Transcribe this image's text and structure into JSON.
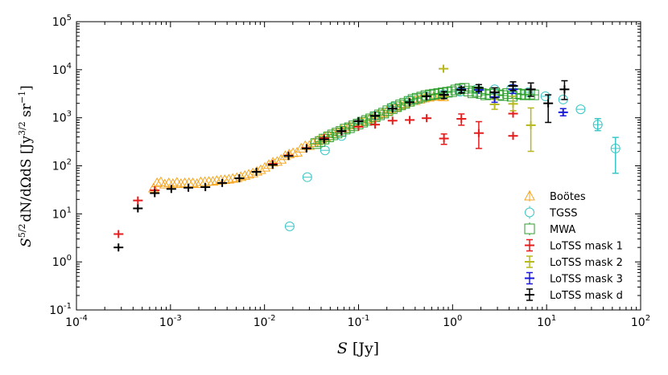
{
  "chart_data": {
    "type": "scatter",
    "xscale": "log",
    "yscale": "log",
    "xlim": [
      0.0001,
      100
    ],
    "ylim": [
      0.1,
      100000
    ],
    "xlabel": "S [Jy]",
    "ylabel": "S^(5/2) dN/dΩdS [Jy^(3/2) sr^-1]",
    "xlabel_parts": {
      "var": "S",
      "unit": "[Jy]"
    },
    "ylabel_parts": {
      "main": "S",
      "exp1": "5/2",
      "mid": "dN/dΩdS [Jy",
      "exp2": "3/2",
      "tail": " sr",
      "exp3": "−1",
      "close": "]"
    },
    "x_ticks": [
      {
        "value": 0.0001,
        "base": "10",
        "exp": "-4"
      },
      {
        "value": 0.001,
        "base": "10",
        "exp": "-3"
      },
      {
        "value": 0.01,
        "base": "10",
        "exp": "-2"
      },
      {
        "value": 0.1,
        "base": "10",
        "exp": "-1"
      },
      {
        "value": 1,
        "base": "10",
        "exp": "0"
      },
      {
        "value": 10,
        "base": "10",
        "exp": "1"
      },
      {
        "value": 100,
        "base": "10",
        "exp": "2"
      }
    ],
    "y_ticks": [
      {
        "value": 0.1,
        "base": "10",
        "exp": "-1"
      },
      {
        "value": 1,
        "base": "10",
        "exp": "0"
      },
      {
        "value": 10,
        "base": "10",
        "exp": "1"
      },
      {
        "value": 100,
        "base": "10",
        "exp": "2"
      },
      {
        "value": 1000,
        "base": "10",
        "exp": "3"
      },
      {
        "value": 10000,
        "base": "10",
        "exp": "4"
      },
      {
        "value": 100000,
        "base": "10",
        "exp": "5"
      }
    ],
    "legend_position": "lower-right",
    "series": [
      {
        "name": "Boötes",
        "key": "bootes",
        "marker": "triangle",
        "color": "#f5a623",
        "points": [
          {
            "x": 0.00066,
            "y": 34
          },
          {
            "x": 0.00072,
            "y": 44
          },
          {
            "x": 0.00079,
            "y": 46
          },
          {
            "x": 0.00087,
            "y": 41
          },
          {
            "x": 0.00096,
            "y": 44
          },
          {
            "x": 0.00106,
            "y": 42
          },
          {
            "x": 0.00117,
            "y": 45
          },
          {
            "x": 0.00129,
            "y": 42
          },
          {
            "x": 0.00142,
            "y": 44
          },
          {
            "x": 0.00157,
            "y": 44
          },
          {
            "x": 0.00173,
            "y": 44
          },
          {
            "x": 0.00191,
            "y": 42
          },
          {
            "x": 0.0021,
            "y": 46
          },
          {
            "x": 0.00232,
            "y": 46
          },
          {
            "x": 0.00256,
            "y": 47
          },
          {
            "x": 0.00282,
            "y": 47
          },
          {
            "x": 0.00311,
            "y": 49
          },
          {
            "x": 0.00343,
            "y": 50
          },
          {
            "x": 0.00378,
            "y": 51
          },
          {
            "x": 0.00417,
            "y": 52
          },
          {
            "x": 0.0046,
            "y": 54
          },
          {
            "x": 0.00507,
            "y": 56
          },
          {
            "x": 0.0056,
            "y": 59
          },
          {
            "x": 0.00617,
            "y": 62
          },
          {
            "x": 0.0068,
            "y": 66
          },
          {
            "x": 0.0075,
            "y": 70
          },
          {
            "x": 0.0083,
            "y": 76
          },
          {
            "x": 0.0091,
            "y": 82
          },
          {
            "x": 0.0101,
            "y": 92
          },
          {
            "x": 0.0111,
            "y": 105
          },
          {
            "x": 0.0123,
            "y": 118
          },
          {
            "x": 0.0136,
            "y": 122
          },
          {
            "x": 0.015,
            "y": 135
          },
          {
            "x": 0.0166,
            "y": 160
          },
          {
            "x": 0.0183,
            "y": 175
          },
          {
            "x": 0.0201,
            "y": 185
          },
          {
            "x": 0.0222,
            "y": 190
          },
          {
            "x": 0.0245,
            "y": 230
          },
          {
            "x": 0.0271,
            "y": 260
          },
          {
            "x": 0.0299,
            "y": 260
          },
          {
            "x": 0.033,
            "y": 300
          },
          {
            "x": 0.0365,
            "y": 330
          },
          {
            "x": 0.0403,
            "y": 360
          },
          {
            "x": 0.0445,
            "y": 390
          },
          {
            "x": 0.049,
            "y": 420
          },
          {
            "x": 0.054,
            "y": 460
          },
          {
            "x": 0.06,
            "y": 500
          },
          {
            "x": 0.066,
            "y": 550
          },
          {
            "x": 0.073,
            "y": 600
          },
          {
            "x": 0.08,
            "y": 650
          },
          {
            "x": 0.089,
            "y": 700
          },
          {
            "x": 0.098,
            "y": 760
          },
          {
            "x": 0.108,
            "y": 820
          },
          {
            "x": 0.12,
            "y": 900
          },
          {
            "x": 0.132,
            "y": 960
          },
          {
            "x": 0.146,
            "y": 1050
          },
          {
            "x": 0.16,
            "y": 1150
          },
          {
            "x": 0.18,
            "y": 1250
          },
          {
            "x": 0.2,
            "y": 1350
          },
          {
            "x": 0.22,
            "y": 1500
          },
          {
            "x": 0.25,
            "y": 1650
          },
          {
            "x": 0.28,
            "y": 1800
          },
          {
            "x": 0.31,
            "y": 1950
          },
          {
            "x": 0.35,
            "y": 2100
          },
          {
            "x": 0.4,
            "y": 2250
          },
          {
            "x": 0.45,
            "y": 2400
          },
          {
            "x": 0.5,
            "y": 2550
          },
          {
            "x": 0.56,
            "y": 2650
          },
          {
            "x": 0.63,
            "y": 2750
          },
          {
            "x": 0.71,
            "y": 2800
          },
          {
            "x": 0.8,
            "y": 2700
          }
        ]
      },
      {
        "name": "TGSS",
        "key": "tgss",
        "marker": "circle",
        "color": "#3cc5c5",
        "points": [
          {
            "x": 0.0185,
            "y": 5.5
          },
          {
            "x": 0.0285,
            "y": 58
          },
          {
            "x": 0.044,
            "y": 210
          },
          {
            "x": 0.066,
            "y": 420
          },
          {
            "x": 0.1,
            "y": 780
          },
          {
            "x": 0.15,
            "y": 1100
          },
          {
            "x": 0.23,
            "y": 1700
          },
          {
            "x": 0.35,
            "y": 2300
          },
          {
            "x": 0.52,
            "y": 2800
          },
          {
            "x": 0.8,
            "y": 3100
          },
          {
            "x": 1.2,
            "y": 3500
          },
          {
            "x": 1.8,
            "y": 3900
          },
          {
            "x": 2.8,
            "y": 3900
          },
          {
            "x": 4.2,
            "y": 4000
          },
          {
            "x": 6.4,
            "y": 3400
          },
          {
            "x": 9.7,
            "y": 2800
          },
          {
            "x": 15,
            "y": 2400
          },
          {
            "x": 23,
            "y": 1500
          },
          {
            "x": 35,
            "y": 720,
            "lo": 540,
            "hi": 960
          },
          {
            "x": 54,
            "y": 230,
            "lo": 70,
            "hi": 390
          }
        ]
      },
      {
        "name": "MWA",
        "key": "mwa",
        "marker": "square",
        "color": "#2e9e2e",
        "points": [
          {
            "x": 0.035,
            "y": 290
          },
          {
            "x": 0.039,
            "y": 320
          },
          {
            "x": 0.043,
            "y": 360
          },
          {
            "x": 0.048,
            "y": 400
          },
          {
            "x": 0.053,
            "y": 440
          },
          {
            "x": 0.059,
            "y": 480
          },
          {
            "x": 0.065,
            "y": 520
          },
          {
            "x": 0.072,
            "y": 580
          },
          {
            "x": 0.08,
            "y": 620
          },
          {
            "x": 0.089,
            "y": 680
          },
          {
            "x": 0.099,
            "y": 740
          },
          {
            "x": 0.11,
            "y": 810
          },
          {
            "x": 0.122,
            "y": 880
          },
          {
            "x": 0.135,
            "y": 950
          },
          {
            "x": 0.15,
            "y": 1050
          },
          {
            "x": 0.167,
            "y": 1150
          },
          {
            "x": 0.185,
            "y": 1250
          },
          {
            "x": 0.205,
            "y": 1400
          },
          {
            "x": 0.228,
            "y": 1550
          },
          {
            "x": 0.253,
            "y": 1700
          },
          {
            "x": 0.28,
            "y": 1850
          },
          {
            "x": 0.31,
            "y": 2000
          },
          {
            "x": 0.345,
            "y": 2200
          },
          {
            "x": 0.38,
            "y": 2400
          },
          {
            "x": 0.42,
            "y": 2550
          },
          {
            "x": 0.47,
            "y": 2700
          },
          {
            "x": 0.52,
            "y": 2900
          },
          {
            "x": 0.58,
            "y": 3000
          },
          {
            "x": 0.64,
            "y": 3100
          },
          {
            "x": 0.71,
            "y": 3200
          },
          {
            "x": 0.79,
            "y": 3300
          },
          {
            "x": 0.88,
            "y": 3400
          },
          {
            "x": 0.98,
            "y": 3500
          },
          {
            "x": 1.08,
            "y": 3800
          },
          {
            "x": 1.2,
            "y": 4000
          },
          {
            "x": 1.33,
            "y": 4100
          },
          {
            "x": 1.48,
            "y": 3600
          },
          {
            "x": 1.64,
            "y": 3300
          },
          {
            "x": 1.82,
            "y": 3500
          },
          {
            "x": 2.02,
            "y": 3200
          },
          {
            "x": 2.25,
            "y": 3000
          },
          {
            "x": 2.5,
            "y": 3100
          },
          {
            "x": 2.8,
            "y": 3300
          },
          {
            "x": 3.1,
            "y": 3000
          },
          {
            "x": 3.45,
            "y": 2900
          },
          {
            "x": 3.85,
            "y": 3200
          },
          {
            "x": 4.3,
            "y": 2800
          },
          {
            "x": 4.8,
            "y": 3200
          },
          {
            "x": 5.3,
            "y": 3100
          },
          {
            "x": 5.9,
            "y": 3000
          },
          {
            "x": 6.6,
            "y": 3100
          },
          {
            "x": 7.3,
            "y": 3000
          }
        ]
      },
      {
        "name": "LoTSS mask 1",
        "key": "mask1",
        "marker": "errorbar",
        "color": "#e51c1c",
        "points": [
          {
            "x": 0.00028,
            "y": 3.8
          },
          {
            "x": 0.00045,
            "y": 19
          },
          {
            "x": 0.00068,
            "y": 31
          },
          {
            "x": 0.0122,
            "y": 110
          },
          {
            "x": 0.018,
            "y": 165
          },
          {
            "x": 0.028,
            "y": 235
          },
          {
            "x": 0.043,
            "y": 380
          },
          {
            "x": 0.066,
            "y": 520
          },
          {
            "x": 0.1,
            "y": 650
          },
          {
            "x": 0.15,
            "y": 720
          },
          {
            "x": 0.23,
            "y": 870
          },
          {
            "x": 0.35,
            "y": 900
          },
          {
            "x": 0.53,
            "y": 980
          },
          {
            "x": 0.81,
            "y": 370,
            "lo": 280,
            "hi": 460
          },
          {
            "x": 1.24,
            "y": 950,
            "lo": 700,
            "hi": 1200
          },
          {
            "x": 1.9,
            "y": 480,
            "lo": 230,
            "hi": 830
          },
          {
            "x": 4.4,
            "y": 420
          },
          {
            "x": 4.4,
            "y": 1220
          }
        ]
      },
      {
        "name": "LoTSS mask 2",
        "key": "mask2",
        "marker": "errorbar",
        "color": "#b7b71e",
        "points": [
          {
            "x": 0.8,
            "y": 10500
          },
          {
            "x": 0.81,
            "y": 2800
          },
          {
            "x": 2.8,
            "y": 1900,
            "lo": 1500,
            "hi": 2400
          },
          {
            "x": 4.4,
            "y": 1950,
            "lo": 1400,
            "hi": 2800
          },
          {
            "x": 6.8,
            "y": 700,
            "lo": 200,
            "hi": 1600
          }
        ]
      },
      {
        "name": "LoTSS mask 3",
        "key": "mask3",
        "marker": "errorbar",
        "color": "#1a1ad9",
        "points": [
          {
            "x": 0.81,
            "y": 3000
          },
          {
            "x": 1.24,
            "y": 3900
          },
          {
            "x": 1.9,
            "y": 3800
          },
          {
            "x": 2.8,
            "y": 2700,
            "lo": 2100,
            "hi": 3300
          },
          {
            "x": 4.4,
            "y": 3900,
            "lo": 3200,
            "hi": 4800
          },
          {
            "x": 15,
            "y": 1300,
            "lo": 1100,
            "hi": 1550
          }
        ]
      },
      {
        "name": "LoTSS mask d",
        "key": "maskd",
        "marker": "errorbar",
        "color": "#000000",
        "points": [
          {
            "x": 0.00028,
            "y": 2.0
          },
          {
            "x": 0.00045,
            "y": 13
          },
          {
            "x": 0.00068,
            "y": 27
          },
          {
            "x": 0.00102,
            "y": 33
          },
          {
            "x": 0.00155,
            "y": 35
          },
          {
            "x": 0.00235,
            "y": 36
          },
          {
            "x": 0.00355,
            "y": 44
          },
          {
            "x": 0.0054,
            "y": 55
          },
          {
            "x": 0.0082,
            "y": 75
          },
          {
            "x": 0.0122,
            "y": 105
          },
          {
            "x": 0.018,
            "y": 160
          },
          {
            "x": 0.028,
            "y": 230
          },
          {
            "x": 0.043,
            "y": 355
          },
          {
            "x": 0.066,
            "y": 530
          },
          {
            "x": 0.1,
            "y": 850
          },
          {
            "x": 0.15,
            "y": 1100
          },
          {
            "x": 0.23,
            "y": 1550
          },
          {
            "x": 0.35,
            "y": 2100
          },
          {
            "x": 0.53,
            "y": 2800
          },
          {
            "x": 0.81,
            "y": 3000,
            "lo": 2500,
            "hi": 3500
          },
          {
            "x": 1.24,
            "y": 3800,
            "lo": 3300,
            "hi": 4300
          },
          {
            "x": 1.9,
            "y": 4200,
            "lo": 3500,
            "hi": 4900
          },
          {
            "x": 2.8,
            "y": 3400,
            "lo": 2600,
            "hi": 4200
          },
          {
            "x": 4.4,
            "y": 4600,
            "lo": 3700,
            "hi": 5600
          },
          {
            "x": 6.8,
            "y": 3900,
            "lo": 2800,
            "hi": 5300
          },
          {
            "x": 10.4,
            "y": 2000,
            "lo": 800,
            "hi": 3000
          },
          {
            "x": 15.5,
            "y": 3900,
            "lo": 2400,
            "hi": 5900
          }
        ]
      }
    ]
  }
}
